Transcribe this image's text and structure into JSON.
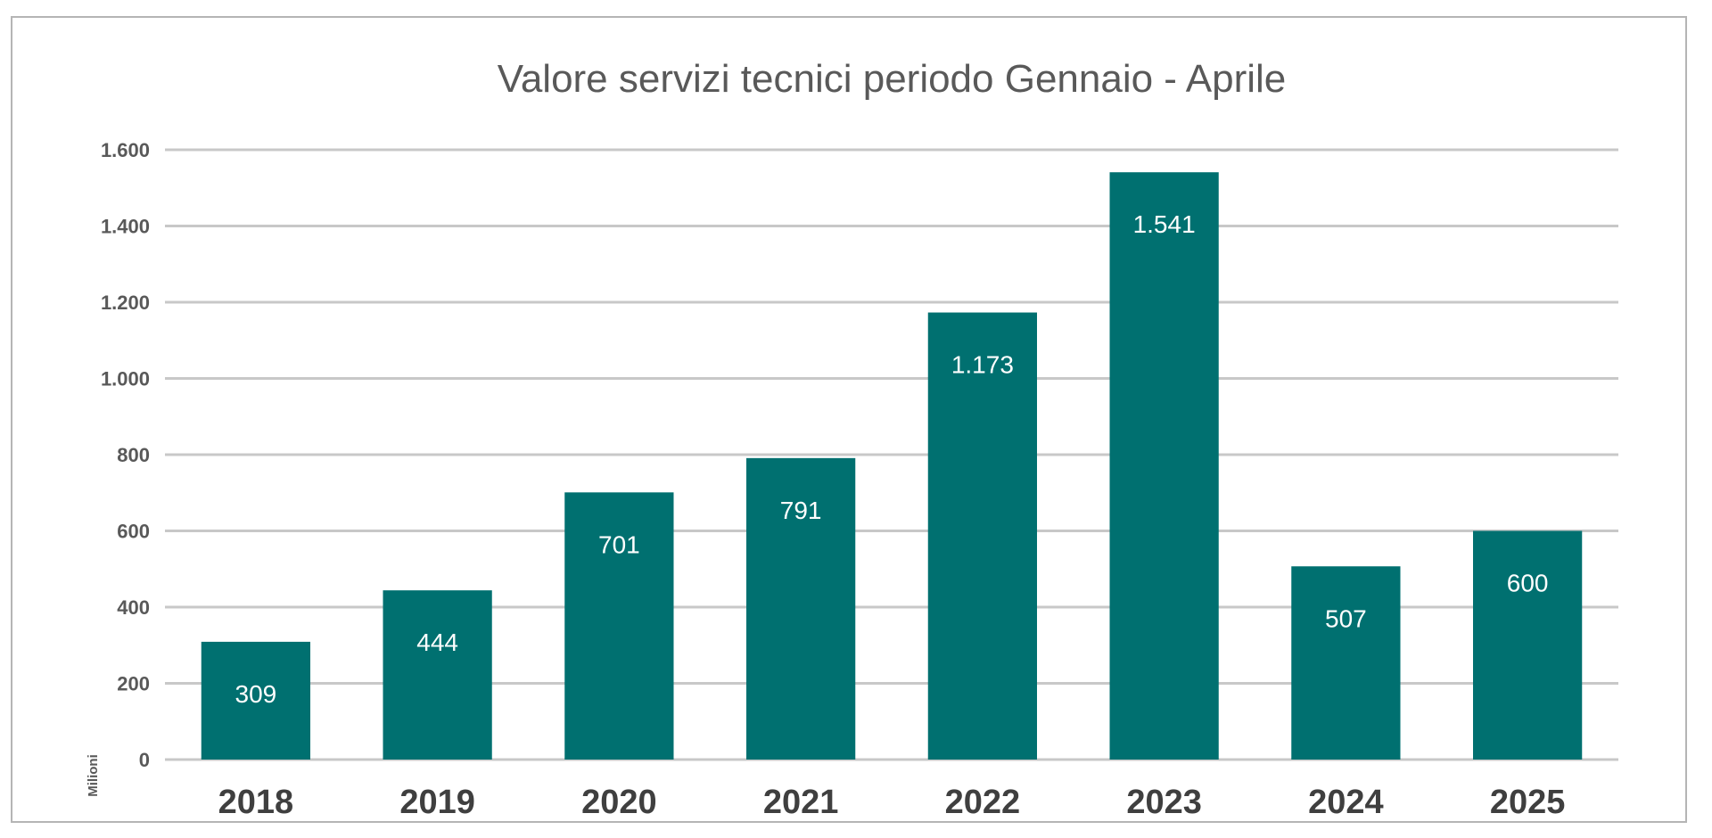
{
  "chart_data": {
    "type": "bar",
    "title": "Valore servizi tecnici periodo Gennaio - Aprile",
    "ylabel": "Milioni",
    "xlabel": "",
    "categories": [
      "2018",
      "2019",
      "2020",
      "2021",
      "2022",
      "2023",
      "2024",
      "2025"
    ],
    "values": [
      309,
      444,
      701,
      791,
      1173,
      1541,
      507,
      600
    ],
    "value_labels": [
      "309",
      "444",
      "701",
      "791",
      "1.173",
      "1.541",
      "507",
      "600"
    ],
    "ylim": [
      0,
      1600
    ],
    "yticks": [
      0,
      200,
      400,
      600,
      800,
      1000,
      1200,
      1400,
      1600
    ],
    "ytick_labels": [
      "0",
      "200",
      "400",
      "600",
      "800",
      "1.000",
      "1.200",
      "1.400",
      "1.600"
    ],
    "grid": true,
    "legend": "none",
    "bar_color": "#007070"
  }
}
